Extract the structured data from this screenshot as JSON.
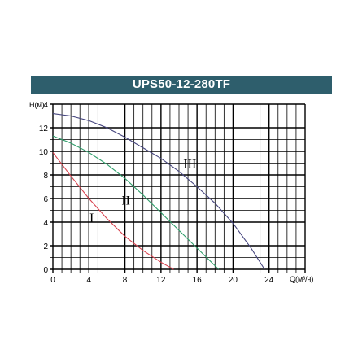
{
  "chart_data": {
    "type": "line",
    "title": "UPS50-12-280TF",
    "xlabel": "Q(м³/ч)",
    "ylabel": "H(м)",
    "xlim": [
      0,
      28
    ],
    "ylim": [
      0,
      14
    ],
    "x_ticks": [
      0,
      4,
      8,
      12,
      16,
      20,
      24
    ],
    "y_ticks": [
      0,
      2,
      4,
      6,
      8,
      10,
      12,
      14
    ],
    "grid": true,
    "series": [
      {
        "name": "I",
        "color": "#d9434f",
        "x": [
          0,
          2,
          4,
          6,
          8,
          10,
          12,
          13.4
        ],
        "y": [
          9.9,
          7.9,
          6.0,
          4.3,
          2.8,
          1.6,
          0.6,
          0
        ]
      },
      {
        "name": "II",
        "color": "#2e9e6a",
        "x": [
          0,
          2,
          4,
          6,
          8,
          10,
          12,
          14,
          16,
          18.4
        ],
        "y": [
          11.3,
          10.7,
          9.9,
          8.9,
          7.7,
          6.3,
          4.8,
          3.3,
          1.8,
          0
        ]
      },
      {
        "name": "III",
        "color": "#45457e",
        "x": [
          0,
          2,
          4,
          6,
          8,
          10,
          12,
          14,
          16,
          18,
          20,
          22,
          23.5
        ],
        "y": [
          13.2,
          13.0,
          12.6,
          12.0,
          11.2,
          10.3,
          9.4,
          8.3,
          7.0,
          5.6,
          3.9,
          1.8,
          0
        ]
      }
    ],
    "annotations": [
      {
        "text": "I",
        "x": 4.3,
        "y": 4.0
      },
      {
        "text": "II",
        "x": 8.1,
        "y": 5.5
      },
      {
        "text": "III",
        "x": 15.2,
        "y": 8.6
      }
    ]
  }
}
